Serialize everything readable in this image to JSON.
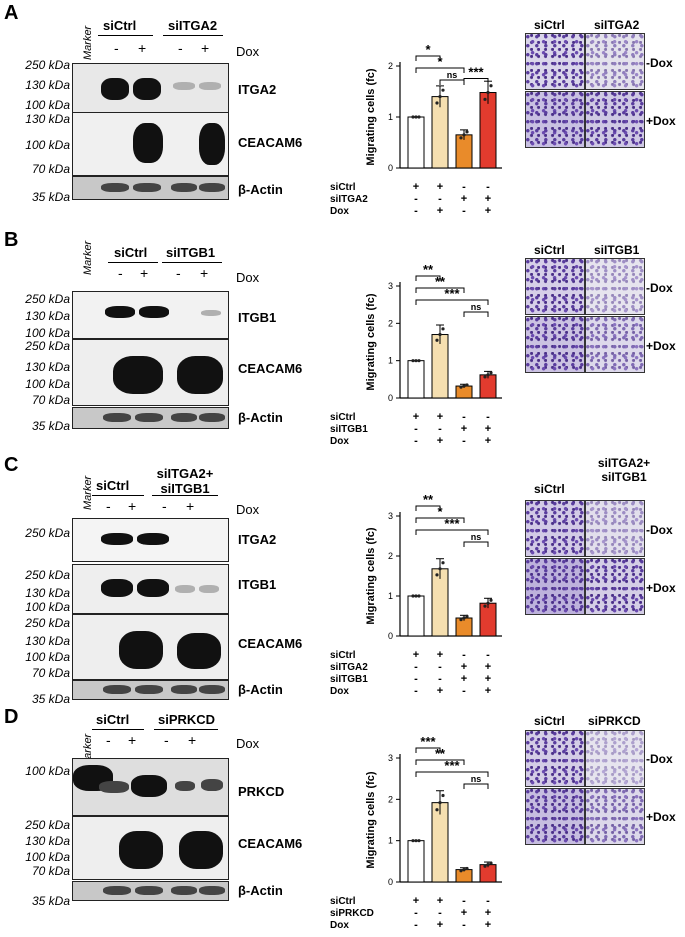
{
  "panels": [
    {
      "label": "A",
      "marker": "Marker",
      "groups": [
        "siCtrl",
        "siITGA2"
      ],
      "dox_label": "Dox",
      "dox_signs": [
        "-",
        "+",
        "-",
        "+"
      ],
      "blots": [
        {
          "name": "ITGA2",
          "kda": [
            "250 kDa",
            "130 kDa",
            "100 kDa"
          ]
        },
        {
          "name": "CEACAM6",
          "kda": [
            "130 kDa",
            "100 kDa",
            "70 kDa"
          ]
        },
        {
          "name": "β-Actin",
          "kda": [
            "35 kDa"
          ]
        }
      ],
      "tile_headers": [
        "siCtrl",
        "siITGA2"
      ],
      "tile_rows": [
        "-Dox",
        "+Dox"
      ],
      "chart_data": {
        "type": "bar",
        "ylabel": "Migrating cells (fc)",
        "ylim": [
          0,
          2
        ],
        "yticks": [
          "0",
          "1",
          "2"
        ],
        "values": [
          1.0,
          1.4,
          0.65,
          1.48
        ],
        "colors": [
          "#ffffff",
          "#f5dfb0",
          "#e98b2a",
          "#e23b2e"
        ],
        "significance": [
          {
            "from": 0,
            "to": 1,
            "label": "*"
          },
          {
            "from": 0,
            "to": 2,
            "label": "*"
          },
          {
            "from": 1,
            "to": 2,
            "label": "ns"
          },
          {
            "from": 2,
            "to": 3,
            "label": "***"
          }
        ],
        "conditions": [
          {
            "name": "siCtrl",
            "signs": [
              "+",
              "+",
              "-",
              "-"
            ]
          },
          {
            "name": "siITGA2",
            "signs": [
              "-",
              "-",
              "+",
              "+"
            ]
          },
          {
            "name": "Dox",
            "signs": [
              "-",
              "+",
              "-",
              "+"
            ]
          }
        ]
      }
    },
    {
      "label": "B",
      "marker": "Marker",
      "groups": [
        "siCtrl",
        "siITGB1"
      ],
      "dox_label": "Dox",
      "dox_signs": [
        "-",
        "+",
        "-",
        "+"
      ],
      "blots": [
        {
          "name": "ITGB1",
          "kda": [
            "250 kDa",
            "130 kDa",
            "100 kDa"
          ]
        },
        {
          "name": "CEACAM6",
          "kda": [
            "250 kDa",
            "130 kDa",
            "100 kDa",
            "70 kDa"
          ]
        },
        {
          "name": "β-Actin",
          "kda": [
            "35 kDa"
          ]
        }
      ],
      "tile_headers": [
        "siCtrl",
        "siITGB1"
      ],
      "tile_rows": [
        "-Dox",
        "+Dox"
      ],
      "chart_data": {
        "type": "bar",
        "ylabel": "Migrating cells (fc)",
        "ylim": [
          0,
          3
        ],
        "yticks": [
          "0",
          "1",
          "2",
          "3"
        ],
        "values": [
          1.0,
          1.7,
          0.32,
          0.62
        ],
        "colors": [
          "#ffffff",
          "#f5dfb0",
          "#e98b2a",
          "#e23b2e"
        ],
        "significance": [
          {
            "from": 0,
            "to": 1,
            "label": "**"
          },
          {
            "from": 0,
            "to": 2,
            "label": "**"
          },
          {
            "from": 0,
            "to": 3,
            "label": "***"
          },
          {
            "from": 2,
            "to": 3,
            "label": "ns"
          }
        ],
        "conditions": [
          {
            "name": "siCtrl",
            "signs": [
              "+",
              "+",
              "-",
              "-"
            ]
          },
          {
            "name": "siITGB1",
            "signs": [
              "-",
              "-",
              "+",
              "+"
            ]
          },
          {
            "name": "Dox",
            "signs": [
              "-",
              "+",
              "-",
              "+"
            ]
          }
        ]
      }
    },
    {
      "label": "C",
      "marker": "Marker",
      "groups": [
        "siCtrl",
        "siITGA2+ siITGB1"
      ],
      "dox_label": "Dox",
      "dox_signs": [
        "-",
        "+",
        "-",
        "+"
      ],
      "blots": [
        {
          "name": "ITGA2",
          "kda": [
            "250 kDa"
          ]
        },
        {
          "name": "ITGB1",
          "kda": [
            "250 kDa",
            "130 kDa",
            "100 kDa"
          ]
        },
        {
          "name": "CEACAM6",
          "kda": [
            "250 kDa",
            "130 kDa",
            "100 kDa",
            "70 kDa"
          ]
        },
        {
          "name": "β-Actin",
          "kda": [
            "35 kDa"
          ]
        }
      ],
      "tile_headers": [
        "siCtrl",
        "siITGA2+ siITGB1"
      ],
      "tile_rows": [
        "-Dox",
        "+Dox"
      ],
      "chart_data": {
        "type": "bar",
        "ylabel": "Migrating cells (fc)",
        "ylim": [
          0,
          3
        ],
        "yticks": [
          "0",
          "1",
          "2",
          "3"
        ],
        "values": [
          1.0,
          1.68,
          0.45,
          0.82
        ],
        "colors": [
          "#ffffff",
          "#f5dfb0",
          "#e98b2a",
          "#e23b2e"
        ],
        "significance": [
          {
            "from": 0,
            "to": 1,
            "label": "**"
          },
          {
            "from": 0,
            "to": 2,
            "label": "*"
          },
          {
            "from": 0,
            "to": 3,
            "label": "***"
          },
          {
            "from": 2,
            "to": 3,
            "label": "ns"
          }
        ],
        "conditions": [
          {
            "name": "siCtrl",
            "signs": [
              "+",
              "+",
              "-",
              "-"
            ]
          },
          {
            "name": "siITGA2",
            "signs": [
              "-",
              "-",
              "+",
              "+"
            ]
          },
          {
            "name": "siITGB1",
            "signs": [
              "-",
              "-",
              "+",
              "+"
            ]
          },
          {
            "name": "Dox",
            "signs": [
              "-",
              "+",
              "-",
              "+"
            ]
          }
        ]
      }
    },
    {
      "label": "D",
      "marker": "Marker",
      "groups": [
        "siCtrl",
        "siPRKCD"
      ],
      "dox_label": "Dox",
      "dox_signs": [
        "-",
        "+",
        "-",
        "+"
      ],
      "blots": [
        {
          "name": "PRKCD",
          "kda": [
            "100 kDa"
          ]
        },
        {
          "name": "CEACAM6",
          "kda": [
            "250 kDa",
            "130 kDa",
            "100 kDa",
            "70 kDa"
          ]
        },
        {
          "name": "β-Actin",
          "kda": [
            "35 kDa"
          ]
        }
      ],
      "tile_headers": [
        "siCtrl",
        "siPRKCD"
      ],
      "tile_rows": [
        "-Dox",
        "+Dox"
      ],
      "chart_data": {
        "type": "bar",
        "ylabel": "Migrating cells (fc)",
        "ylim": [
          0,
          3
        ],
        "yticks": [
          "0",
          "1",
          "2",
          "3"
        ],
        "values": [
          1.0,
          1.92,
          0.3,
          0.42
        ],
        "colors": [
          "#ffffff",
          "#f5dfb0",
          "#e98b2a",
          "#e23b2e"
        ],
        "significance": [
          {
            "from": 0,
            "to": 1,
            "label": "***"
          },
          {
            "from": 0,
            "to": 2,
            "label": "**"
          },
          {
            "from": 0,
            "to": 3,
            "label": "***"
          },
          {
            "from": 2,
            "to": 3,
            "label": "ns"
          }
        ],
        "conditions": [
          {
            "name": "siCtrl",
            "signs": [
              "+",
              "+",
              "-",
              "-"
            ]
          },
          {
            "name": "siPRKCD",
            "signs": [
              "-",
              "-",
              "+",
              "+"
            ]
          },
          {
            "name": "Dox",
            "signs": [
              "-",
              "+",
              "-",
              "+"
            ]
          }
        ]
      }
    }
  ]
}
